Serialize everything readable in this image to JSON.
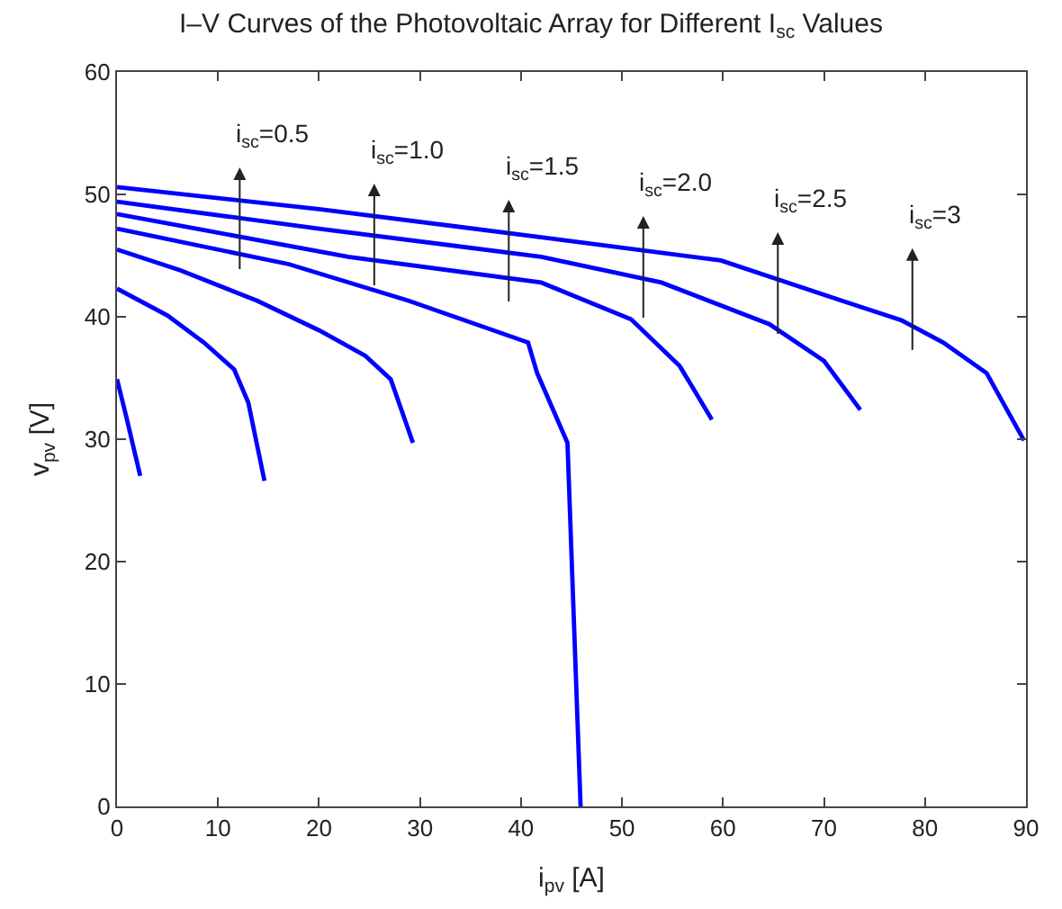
{
  "chart_data": {
    "type": "line",
    "title": "I–V Curves of the Photovoltaic Array for Different I$_{sc}$ Values",
    "xlabel": "i$_{pv}$ [A]",
    "ylabel": "v$_{pv}$ [V]",
    "xlim": [
      0,
      90
    ],
    "xticks": [
      0,
      10,
      20,
      30,
      40,
      50,
      60,
      70,
      80,
      90
    ],
    "ylim": [
      0,
      60
    ],
    "yticks": [
      0,
      10,
      20,
      30,
      40,
      50,
      60
    ],
    "grid": false,
    "marker": "none",
    "line_style": "solid",
    "series": [
      {
        "color": "#0000ff",
        "x": [
          0,
          0.9,
          2.3
        ],
        "values": [
          34.9,
          31.9,
          27.0
        ]
      },
      {
        "color": "#0000ff",
        "x": [
          0,
          5.0,
          8.6,
          11.6,
          13.0,
          14.6
        ],
        "values": [
          42.3,
          40.1,
          37.9,
          35.7,
          33.0,
          26.6
        ]
      },
      {
        "color": "#0000ff",
        "x": [
          0,
          6.25,
          13.9,
          20.0,
          24.6,
          27.1,
          29.3
        ],
        "values": [
          45.5,
          43.8,
          41.3,
          38.9,
          36.8,
          34.9,
          29.7
        ]
      },
      {
        "color": "#0000ff",
        "x": [
          0,
          17.0,
          28.9,
          40.7,
          41.6,
          44.6,
          45.9
        ],
        "values": [
          47.2,
          44.3,
          41.3,
          37.9,
          35.4,
          29.7,
          0
        ]
      },
      {
        "color": "#0000ff",
        "x": [
          0,
          22.9,
          42.0,
          50.9,
          55.7,
          58.9
        ],
        "values": [
          48.4,
          44.9,
          42.8,
          39.8,
          36.0,
          31.6
        ]
      },
      {
        "color": "#0000ff",
        "x": [
          0,
          20.0,
          42.0,
          53.9,
          64.6,
          70.0,
          73.6
        ],
        "values": [
          49.4,
          47.2,
          44.9,
          42.8,
          39.4,
          36.4,
          32.4
        ]
      },
      {
        "color": "#0000ff",
        "x": [
          0,
          20.0,
          42.0,
          59.8,
          71.8,
          77.7,
          81.8,
          86.1,
          89.8
        ],
        "values": [
          50.6,
          48.8,
          46.5,
          44.6,
          41.3,
          39.7,
          37.9,
          35.4,
          29.9
        ]
      }
    ],
    "annotations": [
      "i$_{sc}$=0.5",
      "i$_{sc}$=1.0",
      "i$_{sc}$=1.5",
      "i$_{sc}$=2.0",
      "i$_{sc}$=2.5",
      "i$_{sc}$=3"
    ]
  }
}
